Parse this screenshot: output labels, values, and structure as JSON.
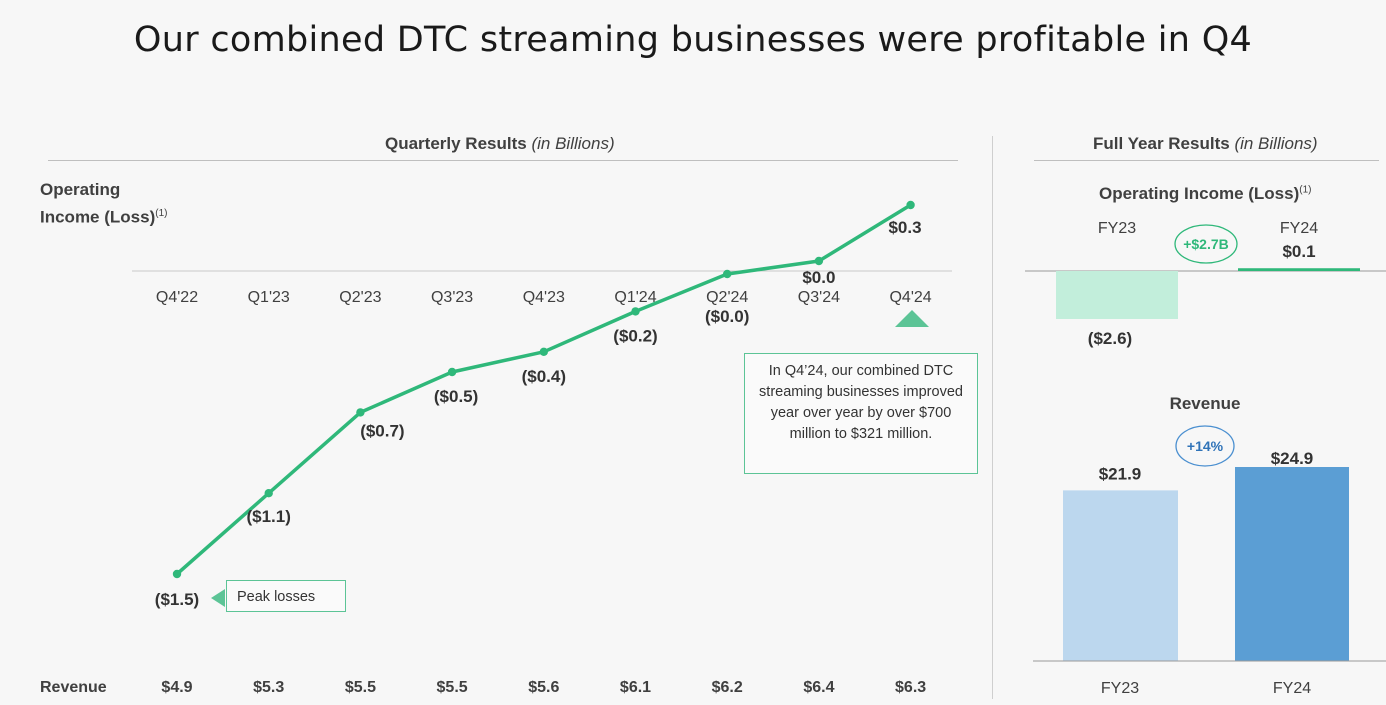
{
  "title": "Our combined DTC streaming businesses were profitable in Q4",
  "quarterly": {
    "header_bold": "Quarterly Results",
    "header_italic": "(in Billions)",
    "metric_line1": "Operating",
    "metric_line2": "Income (Loss)",
    "metric_sup": "(1)",
    "revenue_label": "Revenue",
    "callout_text": "In Q4’24, our combined DTC streaming businesses improved year over year by over $700 million to $321 million.",
    "peak_label": "Peak losses",
    "colors": {
      "line": "#2fb87a",
      "accent": "#5cc496"
    }
  },
  "full_year": {
    "header_bold": "Full Year Results",
    "header_italic": "(in Billions)",
    "oi_title": "Operating Income (Loss)",
    "oi_sup": "(1)",
    "fy23_label": "FY23",
    "fy24_label": "FY24",
    "fy23_oi_value": "($2.6)",
    "fy24_oi_value": "$0.1",
    "oi_change": "+$2.7B",
    "rev_title": "Revenue",
    "fy23_rev_value": "$21.9",
    "fy24_rev_value": "$24.9",
    "rev_change": "+14%",
    "axis_fy23": "FY23",
    "axis_fy24": "FY24",
    "colors": {
      "oi_neg": "#c2eedb",
      "oi_pos": "#2fb87a",
      "rev_fy23": "#bcd7ee",
      "rev_fy24": "#5b9ed4",
      "rev_badge": "#4a8fd0"
    }
  },
  "chart_data": [
    {
      "type": "line",
      "title": "Quarterly Results (in Billions)",
      "ylabel": "Operating Income (Loss)",
      "categories": [
        "Q4'22",
        "Q1'23",
        "Q2'23",
        "Q3'23",
        "Q4'23",
        "Q1'24",
        "Q2'24",
        "Q3'24",
        "Q4'24"
      ],
      "values": [
        -1.5,
        -1.1,
        -0.7,
        -0.5,
        -0.4,
        -0.2,
        -0.0,
        0.0,
        0.3
      ],
      "value_labels": [
        "($1.5)",
        "($1.1)",
        "($0.7)",
        "($0.5)",
        "($0.4)",
        "($0.2)",
        "($0.0)",
        "$0.0",
        "$0.3"
      ],
      "revenue_values": [
        4.9,
        5.3,
        5.5,
        5.5,
        5.6,
        6.1,
        6.2,
        6.4,
        6.3
      ],
      "revenue_labels": [
        "$4.9",
        "$5.3",
        "$5.5",
        "$5.5",
        "$5.6",
        "$6.1",
        "$6.2",
        "$6.4",
        "$6.3"
      ],
      "ylim": [
        -1.6,
        0.35
      ],
      "grid": false
    },
    {
      "type": "bar",
      "title": "Operating Income (Loss)",
      "categories": [
        "FY23",
        "FY24"
      ],
      "values": [
        -2.6,
        0.1
      ],
      "value_labels": [
        "($2.6)",
        "$0.1"
      ]
    },
    {
      "type": "bar",
      "title": "Revenue",
      "categories": [
        "FY23",
        "FY24"
      ],
      "values": [
        21.9,
        24.9
      ],
      "value_labels": [
        "$21.9",
        "$24.9"
      ]
    }
  ]
}
